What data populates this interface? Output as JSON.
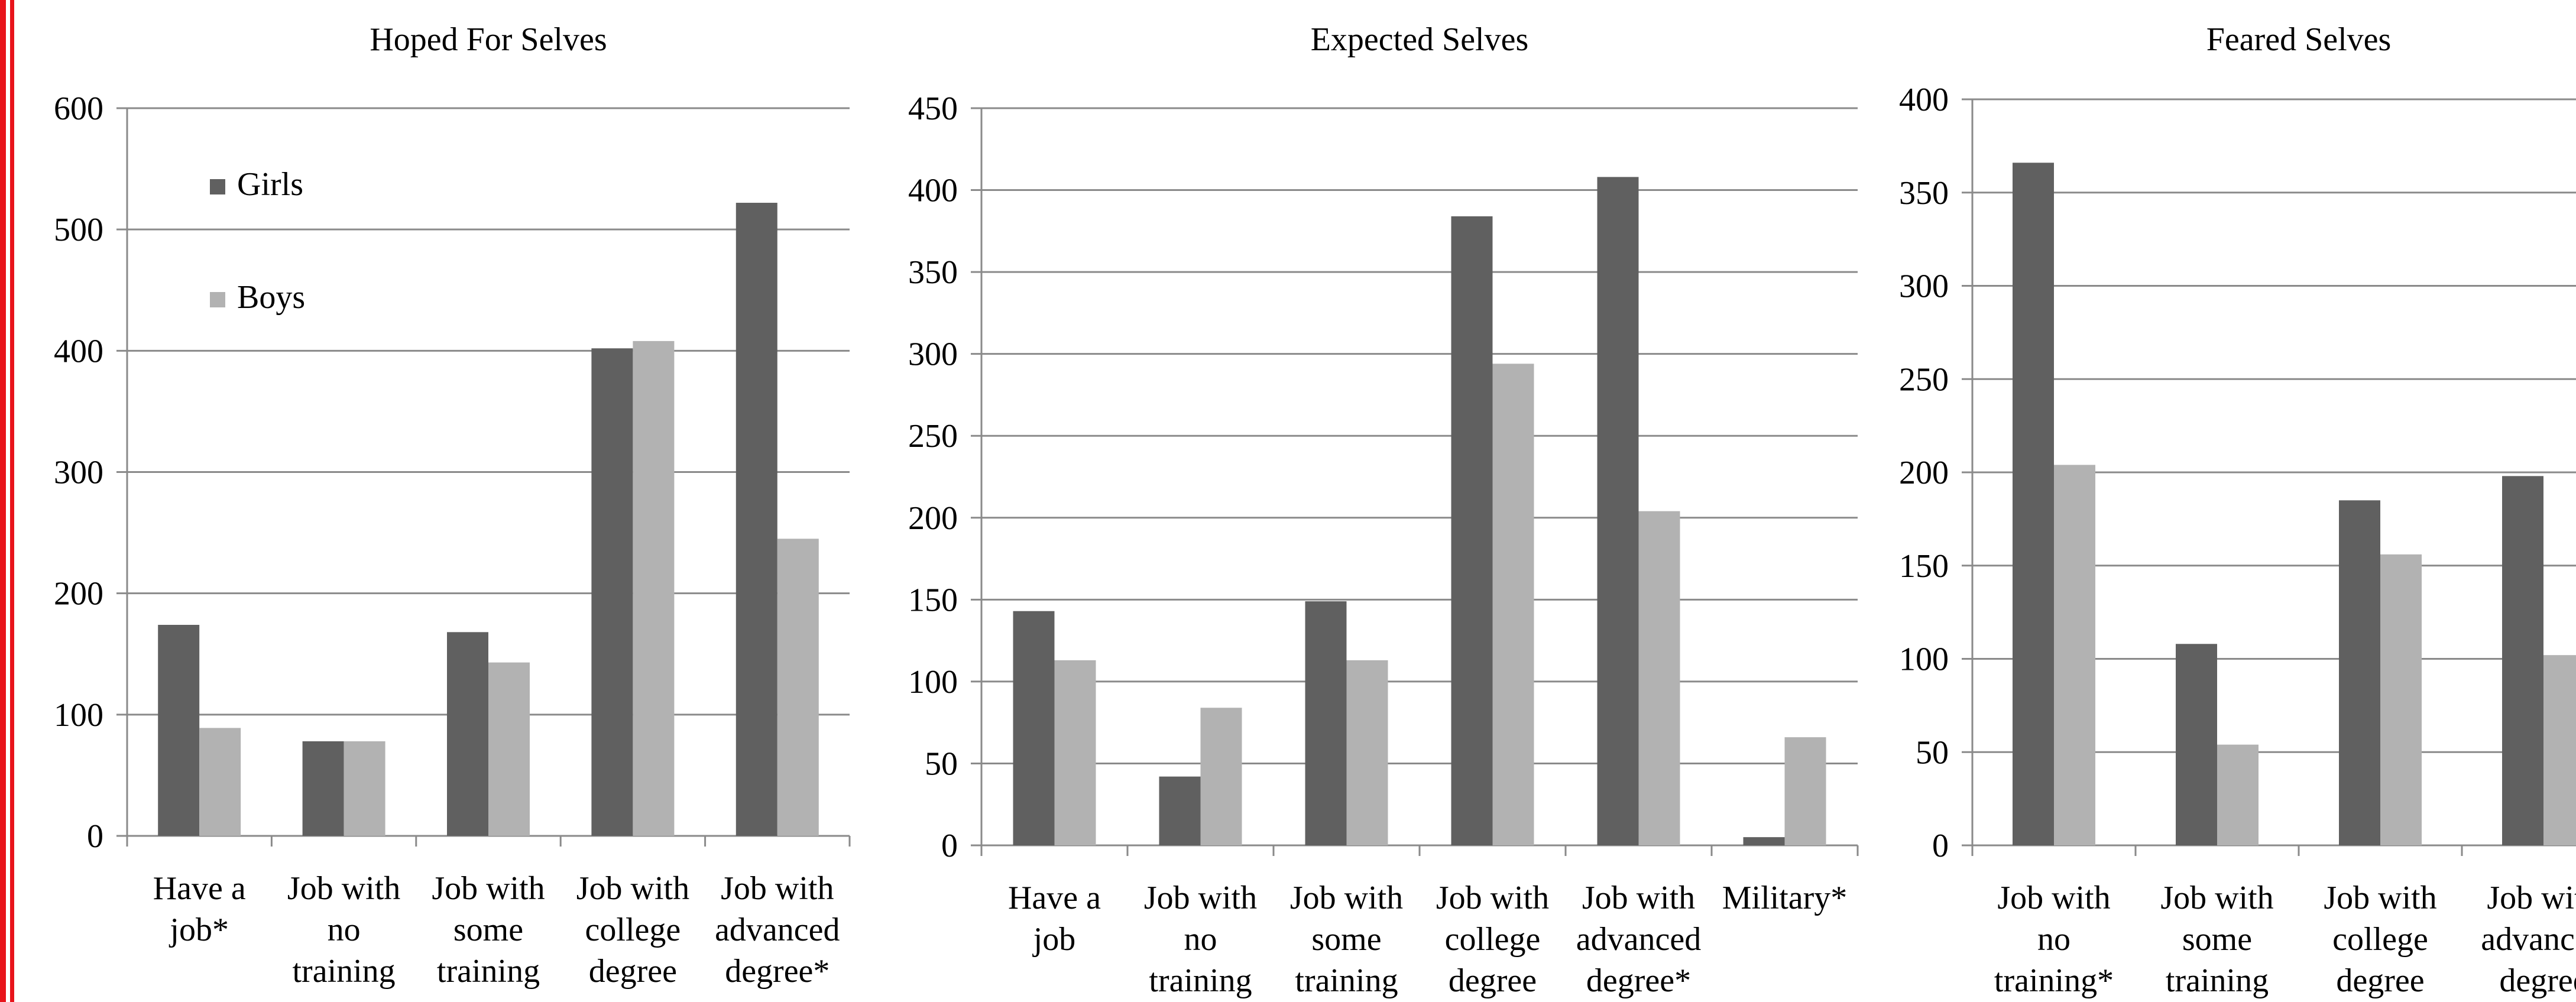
{
  "colors": {
    "girls": "#606060",
    "boys": "#b2b2b2",
    "grid": "#8a8a8a",
    "axis": "#8a8a8a",
    "edge": "#e8141b"
  },
  "legend": {
    "girls": "Girls",
    "boys": "Boys"
  },
  "chart_data": [
    {
      "type": "bar",
      "title": "Hoped For Selves",
      "categories": [
        [
          "Have a",
          "job*"
        ],
        [
          "Job with",
          "no",
          "training"
        ],
        [
          "Job with",
          "some",
          "training"
        ],
        [
          "Job with",
          "college",
          "degree"
        ],
        [
          "Job with",
          "advanced",
          "degree*"
        ]
      ],
      "series": [
        {
          "name": "Girls",
          "values": [
            174,
            78,
            168,
            402,
            522
          ]
        },
        {
          "name": "Boys",
          "values": [
            89,
            78,
            143,
            408,
            245
          ]
        }
      ],
      "ylim": [
        0,
        600
      ],
      "yticks": [
        0,
        100,
        200,
        300,
        400,
        500,
        600
      ],
      "grid": true,
      "legend_position": "top-left"
    },
    {
      "type": "bar",
      "title": "Expected Selves",
      "categories": [
        [
          "Have a",
          "job"
        ],
        [
          "Job with",
          "no",
          "training"
        ],
        [
          "Job with",
          "some",
          "training"
        ],
        [
          "Job with",
          "college",
          "degree"
        ],
        [
          "Job with",
          "advanced",
          "degree*"
        ],
        [
          "Military*"
        ]
      ],
      "series": [
        {
          "name": "Girls",
          "values": [
            143,
            42,
            149,
            384,
            408,
            5
          ]
        },
        {
          "name": "Boys",
          "values": [
            113,
            84,
            113,
            294,
            204,
            66
          ]
        }
      ],
      "ylim": [
        0,
        450
      ],
      "yticks": [
        0,
        50,
        100,
        150,
        200,
        250,
        300,
        350,
        400,
        450
      ],
      "grid": true
    },
    {
      "type": "bar",
      "title": "Feared Selves",
      "categories": [
        [
          "Job with",
          "no",
          "training*"
        ],
        [
          "Job with",
          "some",
          "training"
        ],
        [
          "Job with",
          "college",
          "degree"
        ],
        [
          "Job with",
          "advanced",
          "degree"
        ]
      ],
      "series": [
        {
          "name": "Girls",
          "values": [
            366,
            108,
            185,
            198
          ]
        },
        {
          "name": "Boys",
          "values": [
            204,
            54,
            156,
            102
          ]
        }
      ],
      "ylim": [
        0,
        400
      ],
      "yticks": [
        0,
        50,
        100,
        150,
        200,
        250,
        300,
        350,
        400
      ],
      "grid": true
    }
  ]
}
